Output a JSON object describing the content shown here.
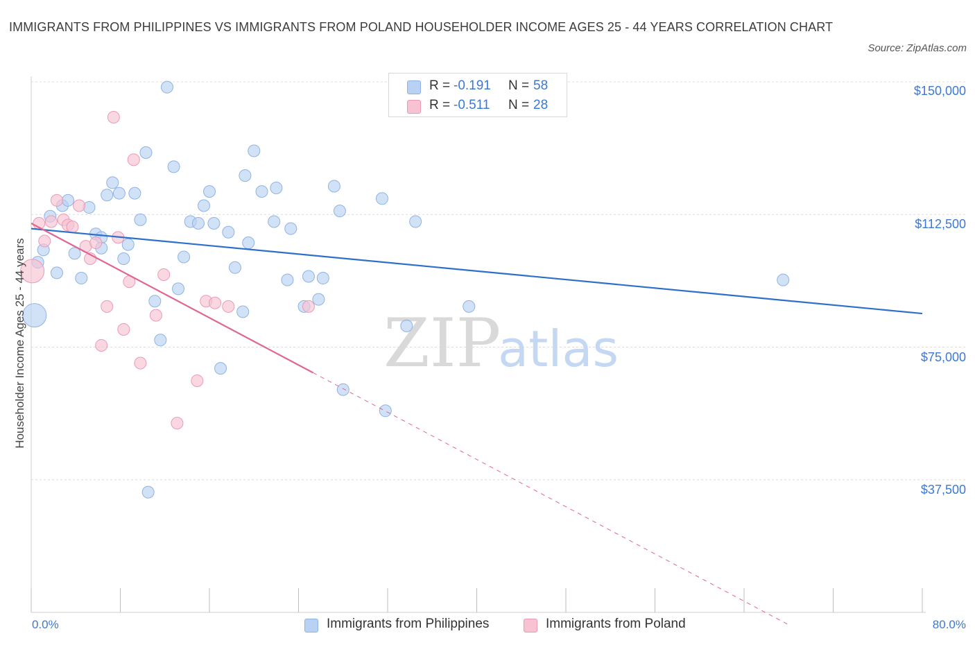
{
  "title": "IMMIGRANTS FROM PHILIPPINES VS IMMIGRANTS FROM POLAND HOUSEHOLDER INCOME AGES 25 - 44 YEARS CORRELATION CHART",
  "source": "Source: ZipAtlas.com",
  "colors": {
    "blue_fill": "#b9d2f3",
    "blue_stroke": "#8fb2e6",
    "blue_line": "#2e6fcc",
    "pink_fill": "#f7c3d3",
    "pink_stroke": "#ec9ab4",
    "pink_line": "#e06692",
    "accent_text": "#3b78d4",
    "grid": "#dcdcdc"
  },
  "legend": {
    "rows": [
      {
        "r_label": "R =",
        "r_value": "-0.191",
        "n_label": "N =",
        "n_value": "58",
        "color": "#b9d2f3",
        "stroke": "#8fb2e6"
      },
      {
        "r_label": "R =",
        "r_value": "-0.511",
        "n_label": "N =",
        "n_value": "28",
        "color": "#f7c3d3",
        "stroke": "#ec9ab4"
      }
    ]
  },
  "chart_data": {
    "type": "scatter",
    "title": "IMMIGRANTS FROM PHILIPPINES VS IMMIGRANTS FROM POLAND HOUSEHOLDER INCOME AGES 25 - 44 YEARS CORRELATION CHART",
    "xlabel": "",
    "ylabel": "Householder Income Ages 25 - 44 years",
    "xlim": [
      0,
      80
    ],
    "ylim": [
      0,
      150000
    ],
    "x_tick_labels": [
      "0.0%",
      "80.0%"
    ],
    "y_ticks": [
      {
        "value": 150000,
        "label": "$150,000"
      },
      {
        "value": 112500,
        "label": "$112,500"
      },
      {
        "value": 75000,
        "label": "$75,000"
      },
      {
        "value": 37500,
        "label": "$37,500"
      }
    ],
    "grid": true,
    "legend_position": "bottom-center",
    "watermark": {
      "part1": "ZIP",
      "part2": "atlas"
    },
    "series": [
      {
        "name": "Immigrants from Philippines",
        "color": "#b9d2f3",
        "trend": {
          "x": [
            0,
            80
          ],
          "y": [
            108500,
            84500
          ],
          "dashed_after": null
        },
        "points": [
          {
            "x": 0.3,
            "y": 84000,
            "big": true
          },
          {
            "x": 0.6,
            "y": 99000
          },
          {
            "x": 1.1,
            "y": 102500
          },
          {
            "x": 1.7,
            "y": 112000
          },
          {
            "x": 2.3,
            "y": 96000
          },
          {
            "x": 2.8,
            "y": 115000
          },
          {
            "x": 3.3,
            "y": 116500
          },
          {
            "x": 3.9,
            "y": 101500
          },
          {
            "x": 4.5,
            "y": 94500
          },
          {
            "x": 5.2,
            "y": 114500
          },
          {
            "x": 5.8,
            "y": 107000
          },
          {
            "x": 6.3,
            "y": 106000
          },
          {
            "x": 6.3,
            "y": 103000
          },
          {
            "x": 6.8,
            "y": 118000
          },
          {
            "x": 7.3,
            "y": 121500
          },
          {
            "x": 7.9,
            "y": 118500
          },
          {
            "x": 8.3,
            "y": 100000
          },
          {
            "x": 8.7,
            "y": 104000
          },
          {
            "x": 9.3,
            "y": 118500
          },
          {
            "x": 9.8,
            "y": 111000
          },
          {
            "x": 10.3,
            "y": 130000
          },
          {
            "x": 11.1,
            "y": 88000
          },
          {
            "x": 11.6,
            "y": 77000
          },
          {
            "x": 12.2,
            "y": 148500
          },
          {
            "x": 12.8,
            "y": 126000
          },
          {
            "x": 13.2,
            "y": 91500
          },
          {
            "x": 13.7,
            "y": 100500
          },
          {
            "x": 14.3,
            "y": 110500
          },
          {
            "x": 15.0,
            "y": 110000
          },
          {
            "x": 15.5,
            "y": 115000
          },
          {
            "x": 16.0,
            "y": 119000
          },
          {
            "x": 16.4,
            "y": 110000
          },
          {
            "x": 17.7,
            "y": 107500
          },
          {
            "x": 18.3,
            "y": 97500
          },
          {
            "x": 19.0,
            "y": 85000
          },
          {
            "x": 19.2,
            "y": 123500
          },
          {
            "x": 19.5,
            "y": 104500
          },
          {
            "x": 20.0,
            "y": 130500
          },
          {
            "x": 20.7,
            "y": 119000
          },
          {
            "x": 21.8,
            "y": 110500
          },
          {
            "x": 22.0,
            "y": 120000
          },
          {
            "x": 23.0,
            "y": 94000
          },
          {
            "x": 23.3,
            "y": 108500
          },
          {
            "x": 24.5,
            "y": 86500
          },
          {
            "x": 24.9,
            "y": 95000
          },
          {
            "x": 25.8,
            "y": 88500
          },
          {
            "x": 26.2,
            "y": 94500
          },
          {
            "x": 27.2,
            "y": 120500
          },
          {
            "x": 27.7,
            "y": 113500
          },
          {
            "x": 28.0,
            "y": 63000
          },
          {
            "x": 31.5,
            "y": 117000
          },
          {
            "x": 31.8,
            "y": 57000
          },
          {
            "x": 33.7,
            "y": 81000
          },
          {
            "x": 34.5,
            "y": 110500
          },
          {
            "x": 39.3,
            "y": 86500
          },
          {
            "x": 67.5,
            "y": 94000
          },
          {
            "x": 10.5,
            "y": 34000
          },
          {
            "x": 17.0,
            "y": 69000
          }
        ]
      },
      {
        "name": "Immigrants from Poland",
        "color": "#f7c3d3",
        "trend": {
          "x": [
            0,
            68
          ],
          "y": [
            110000,
            -3500
          ],
          "dashed_after": 25.3
        },
        "points": [
          {
            "x": 0.1,
            "y": 96500,
            "big": true
          },
          {
            "x": 0.7,
            "y": 110000
          },
          {
            "x": 1.2,
            "y": 105000
          },
          {
            "x": 1.8,
            "y": 110500
          },
          {
            "x": 2.3,
            "y": 116500
          },
          {
            "x": 2.9,
            "y": 111000
          },
          {
            "x": 3.3,
            "y": 109500
          },
          {
            "x": 3.7,
            "y": 109000
          },
          {
            "x": 4.3,
            "y": 115000
          },
          {
            "x": 4.9,
            "y": 103500
          },
          {
            "x": 5.3,
            "y": 100000
          },
          {
            "x": 5.8,
            "y": 104500
          },
          {
            "x": 6.3,
            "y": 75500
          },
          {
            "x": 6.8,
            "y": 86500
          },
          {
            "x": 7.4,
            "y": 140000
          },
          {
            "x": 7.8,
            "y": 106000
          },
          {
            "x": 8.3,
            "y": 80000
          },
          {
            "x": 8.8,
            "y": 93500
          },
          {
            "x": 9.2,
            "y": 128000
          },
          {
            "x": 9.8,
            "y": 70500
          },
          {
            "x": 11.2,
            "y": 84000
          },
          {
            "x": 11.9,
            "y": 95500
          },
          {
            "x": 13.1,
            "y": 53500
          },
          {
            "x": 14.9,
            "y": 65500
          },
          {
            "x": 15.7,
            "y": 88000
          },
          {
            "x": 16.5,
            "y": 87500
          },
          {
            "x": 17.7,
            "y": 86500
          },
          {
            "x": 24.9,
            "y": 86500
          }
        ]
      }
    ]
  }
}
